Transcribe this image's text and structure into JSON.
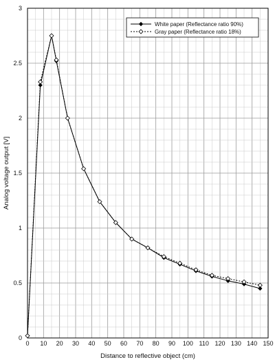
{
  "chart_data": {
    "type": "line",
    "xlabel": "Distance to reflective object (cm)",
    "ylabel": "Analog voltage output [V]",
    "xlim": [
      0,
      150
    ],
    "ylim": [
      0,
      3
    ],
    "x_ticks": [
      0,
      10,
      20,
      30,
      40,
      50,
      60,
      70,
      80,
      90,
      100,
      110,
      120,
      130,
      140,
      150
    ],
    "y_ticks": [
      0,
      0.5,
      1,
      1.5,
      2,
      2.5,
      3
    ],
    "grid": true,
    "legend_position": "top-right",
    "series": [
      {
        "name": "White paper (Reflectance ratio 90%)",
        "line_style": "solid",
        "marker": "filled-diamond",
        "x": [
          0,
          8,
          15,
          18,
          25,
          35,
          45,
          55,
          65,
          75,
          85,
          95,
          105,
          115,
          125,
          135,
          145
        ],
        "y": [
          0.02,
          2.3,
          2.75,
          2.52,
          2.0,
          1.54,
          1.24,
          1.05,
          0.9,
          0.82,
          0.73,
          0.67,
          0.61,
          0.56,
          0.52,
          0.49,
          0.45
        ]
      },
      {
        "name": "Gray paper (Reflectance ratio 18%)",
        "line_style": "dotted",
        "marker": "hollow-diamond",
        "x": [
          0,
          8,
          15,
          18,
          25,
          35,
          45,
          55,
          65,
          75,
          85,
          95,
          105,
          115,
          125,
          135,
          145
        ],
        "y": [
          0.02,
          2.33,
          2.75,
          2.53,
          2.0,
          1.54,
          1.24,
          1.05,
          0.9,
          0.82,
          0.74,
          0.68,
          0.62,
          0.57,
          0.54,
          0.51,
          0.48
        ]
      }
    ]
  }
}
